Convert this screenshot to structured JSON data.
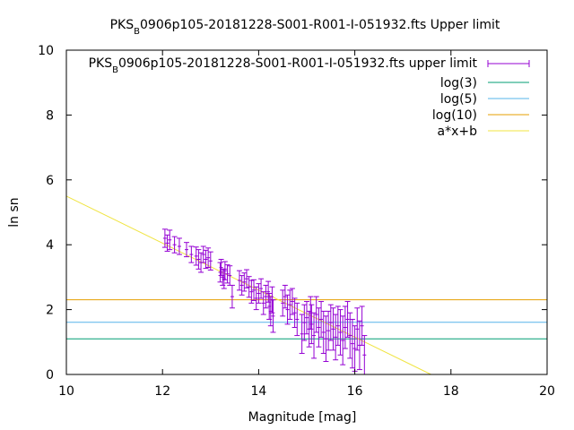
{
  "chart_data": {
    "type": "scatter",
    "title": {
      "prefix": "PKS",
      "subscript": "B",
      "rest": "0906p105-20181228-S001-R001-I-051932.fts Upper limit"
    },
    "xlabel": "Magnitude [mag]",
    "ylabel": "ln sn",
    "xlim": [
      10,
      20
    ],
    "ylim": [
      0,
      10
    ],
    "x_ticks": [
      "10",
      "12",
      "14",
      "16",
      "18",
      "20"
    ],
    "y_ticks": [
      "0",
      "2",
      "4",
      "6",
      "8",
      "10"
    ],
    "x_tick_values": [
      10,
      12,
      14,
      16,
      18,
      20
    ],
    "y_tick_values": [
      0,
      2,
      4,
      6,
      8,
      10
    ],
    "grid": false,
    "legend_position": "top-right",
    "series": [
      {
        "name_parts": {
          "prefix": "PKS",
          "subscript": "B",
          "rest": "0906p105-20181228-S001-R001-I-051932.fts upper limit"
        },
        "style": "errorbars",
        "color": "#9400d3",
        "points": [
          [
            12.05,
            4.2,
            0.28
          ],
          [
            12.1,
            4.05,
            0.25
          ],
          [
            12.15,
            4.15,
            0.3
          ],
          [
            12.25,
            4.0,
            0.25
          ],
          [
            12.35,
            3.95,
            0.25
          ],
          [
            12.5,
            3.85,
            0.22
          ],
          [
            12.6,
            3.7,
            0.25
          ],
          [
            12.7,
            3.65,
            0.28
          ],
          [
            12.75,
            3.55,
            0.3
          ],
          [
            12.8,
            3.45,
            0.3
          ],
          [
            12.85,
            3.7,
            0.25
          ],
          [
            12.9,
            3.55,
            0.28
          ],
          [
            12.95,
            3.6,
            0.3
          ],
          [
            13.0,
            3.5,
            0.28
          ],
          [
            13.2,
            3.15,
            0.3
          ],
          [
            13.22,
            3.3,
            0.25
          ],
          [
            13.25,
            3.0,
            0.25
          ],
          [
            13.28,
            2.95,
            0.3
          ],
          [
            13.3,
            3.2,
            0.28
          ],
          [
            13.35,
            3.1,
            0.28
          ],
          [
            13.4,
            3.05,
            0.3
          ],
          [
            13.45,
            2.4,
            0.35
          ],
          [
            13.6,
            2.9,
            0.3
          ],
          [
            13.65,
            2.75,
            0.3
          ],
          [
            13.7,
            2.85,
            0.28
          ],
          [
            13.75,
            2.95,
            0.28
          ],
          [
            13.8,
            2.7,
            0.32
          ],
          [
            13.85,
            2.55,
            0.35
          ],
          [
            13.9,
            2.6,
            0.32
          ],
          [
            13.95,
            2.35,
            0.35
          ],
          [
            14.0,
            2.5,
            0.3
          ],
          [
            14.05,
            2.65,
            0.3
          ],
          [
            14.1,
            2.2,
            0.35
          ],
          [
            14.15,
            2.4,
            0.35
          ],
          [
            14.2,
            2.55,
            0.32
          ],
          [
            14.22,
            2.1,
            0.4
          ],
          [
            14.25,
            1.95,
            0.45
          ],
          [
            14.28,
            2.3,
            0.4
          ],
          [
            14.3,
            1.8,
            0.5
          ],
          [
            14.5,
            2.2,
            0.4
          ],
          [
            14.55,
            2.4,
            0.35
          ],
          [
            14.6,
            2.0,
            0.45
          ],
          [
            14.65,
            2.15,
            0.45
          ],
          [
            14.7,
            2.25,
            0.4
          ],
          [
            14.75,
            1.9,
            0.45
          ],
          [
            14.8,
            1.7,
            0.5
          ],
          [
            14.9,
            1.25,
            0.6
          ],
          [
            14.95,
            1.6,
            0.55
          ],
          [
            15.0,
            1.75,
            0.5
          ],
          [
            15.05,
            1.4,
            0.55
          ],
          [
            15.08,
            1.9,
            0.5
          ],
          [
            15.1,
            1.55,
            0.6
          ],
          [
            15.15,
            1.2,
            0.7
          ],
          [
            15.2,
            1.85,
            0.55
          ],
          [
            15.25,
            1.45,
            0.6
          ],
          [
            15.3,
            1.7,
            0.55
          ],
          [
            15.35,
            1.3,
            0.65
          ],
          [
            15.4,
            1.1,
            0.7
          ],
          [
            15.45,
            1.35,
            0.6
          ],
          [
            15.5,
            1.6,
            0.55
          ],
          [
            15.55,
            1.4,
            0.65
          ],
          [
            15.6,
            1.15,
            0.7
          ],
          [
            15.65,
            1.5,
            0.6
          ],
          [
            15.7,
            1.3,
            0.7
          ],
          [
            15.75,
            1.05,
            0.75
          ],
          [
            15.8,
            1.45,
            0.65
          ],
          [
            15.85,
            1.7,
            0.55
          ],
          [
            15.9,
            1.2,
            0.7
          ],
          [
            15.95,
            0.95,
            0.75
          ],
          [
            16.0,
            0.8,
            0.7
          ],
          [
            16.05,
            1.4,
            0.65
          ],
          [
            16.1,
            0.9,
            0.75
          ],
          [
            16.15,
            1.5,
            0.6
          ],
          [
            16.2,
            0.6,
            0.6
          ]
        ]
      },
      {
        "name": "log(3)",
        "style": "hline",
        "y": 1.0986,
        "color": "#009e73"
      },
      {
        "name": "log(5)",
        "style": "hline",
        "y": 1.6094,
        "color": "#56b4e9"
      },
      {
        "name": "log(10)",
        "style": "hline",
        "y": 2.3026,
        "color": "#e69f00"
      },
      {
        "name": "a*x+b",
        "style": "line",
        "slope": -0.725,
        "intercept": 12.75,
        "color": "#f0e442"
      }
    ]
  }
}
